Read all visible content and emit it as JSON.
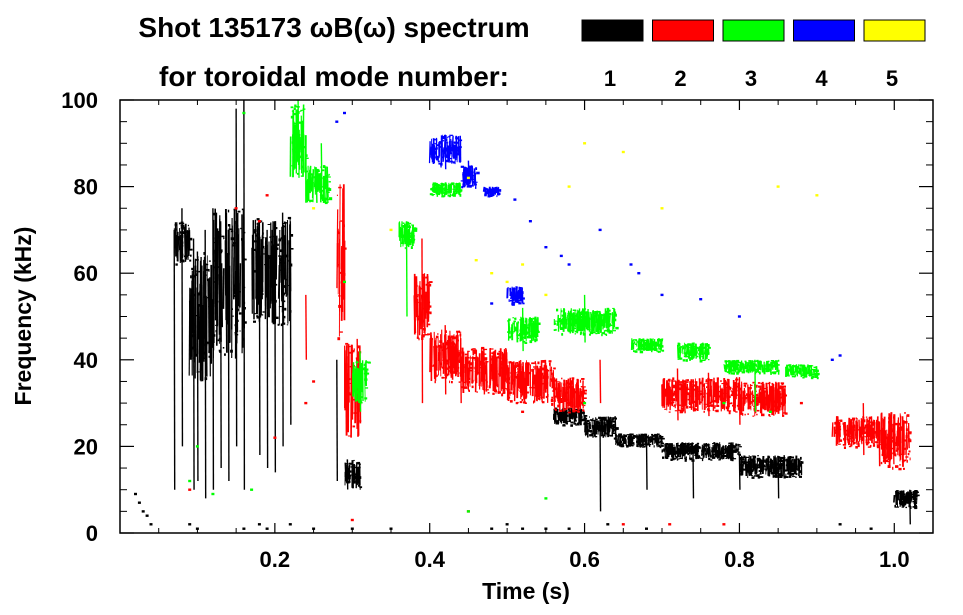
{
  "chart_data": {
    "type": "scatter",
    "title_line1": "Shot 135173 ωB(ω) spectrum",
    "title_line2": "for toroidal mode number:",
    "xlabel": "Time (s)",
    "ylabel": "Frequency (kHz)",
    "xlim": [
      0.0,
      1.05
    ],
    "ylim": [
      0,
      100
    ],
    "x_ticks": [
      0.2,
      0.4,
      0.6,
      0.8,
      1.0
    ],
    "x_tick_labels": [
      "0.2",
      "0.4",
      "0.6",
      "0.8",
      "1.0"
    ],
    "y_ticks": [
      0,
      20,
      40,
      60,
      80,
      100
    ],
    "y_tick_labels": [
      "0",
      "20",
      "40",
      "60",
      "80",
      "100"
    ],
    "legend": [
      {
        "label": "1",
        "color": "#000000"
      },
      {
        "label": "2",
        "color": "#ff0000"
      },
      {
        "label": "3",
        "color": "#00ff00"
      },
      {
        "label": "4",
        "color": "#0000ff"
      },
      {
        "label": "5",
        "color": "#ffff00"
      }
    ],
    "series": [
      {
        "name": "1",
        "color": "#000000",
        "bands": [
          [
            0.07,
            0.09,
            62,
            72
          ],
          [
            0.09,
            0.12,
            35,
            65
          ],
          [
            0.12,
            0.16,
            40,
            75
          ],
          [
            0.17,
            0.22,
            48,
            73
          ],
          [
            0.29,
            0.31,
            10,
            17
          ],
          [
            0.56,
            0.6,
            25,
            29
          ],
          [
            0.6,
            0.64,
            22,
            27
          ],
          [
            0.64,
            0.7,
            20,
            23
          ],
          [
            0.7,
            0.8,
            17,
            21
          ],
          [
            0.8,
            0.88,
            13,
            18
          ],
          [
            1.0,
            1.03,
            6,
            10
          ]
        ],
        "spikes": [
          [
            0.07,
            10,
            70
          ],
          [
            0.08,
            20,
            75
          ],
          [
            0.095,
            10,
            68
          ],
          [
            0.1,
            12,
            65
          ],
          [
            0.11,
            8,
            70
          ],
          [
            0.12,
            10,
            75
          ],
          [
            0.13,
            15,
            72
          ],
          [
            0.14,
            12,
            70
          ],
          [
            0.15,
            20,
            98
          ],
          [
            0.16,
            10,
            100
          ],
          [
            0.18,
            18,
            72
          ],
          [
            0.19,
            15,
            70
          ],
          [
            0.2,
            14,
            72
          ],
          [
            0.21,
            20,
            74
          ],
          [
            0.22,
            25,
            72
          ],
          [
            0.28,
            12,
            40
          ],
          [
            0.62,
            5,
            25
          ],
          [
            0.68,
            10,
            22
          ],
          [
            0.74,
            8,
            20
          ],
          [
            0.8,
            10,
            18
          ],
          [
            0.85,
            8,
            17
          ],
          [
            1.02,
            2,
            10
          ]
        ],
        "points": [
          [
            0.02,
            9
          ],
          [
            0.025,
            7
          ],
          [
            0.03,
            5
          ],
          [
            0.035,
            4
          ],
          [
            0.04,
            2
          ],
          [
            0.09,
            2
          ],
          [
            0.1,
            1
          ],
          [
            0.16,
            1
          ],
          [
            0.18,
            2
          ],
          [
            0.19,
            1
          ],
          [
            0.22,
            2
          ],
          [
            0.25,
            1
          ],
          [
            0.3,
            1
          ],
          [
            0.35,
            1
          ],
          [
            0.48,
            1
          ],
          [
            0.5,
            2
          ],
          [
            0.52,
            1
          ],
          [
            0.55,
            1
          ],
          [
            0.58,
            1
          ],
          [
            0.63,
            2
          ],
          [
            0.68,
            1
          ],
          [
            0.93,
            2
          ],
          [
            0.97,
            1
          ]
        ]
      },
      {
        "name": "2",
        "color": "#ff0000",
        "bands": [
          [
            0.28,
            0.29,
            45,
            82
          ],
          [
            0.29,
            0.31,
            22,
            45
          ],
          [
            0.38,
            0.4,
            45,
            60
          ],
          [
            0.4,
            0.44,
            35,
            47
          ],
          [
            0.44,
            0.5,
            32,
            43
          ],
          [
            0.5,
            0.56,
            30,
            40
          ],
          [
            0.56,
            0.6,
            28,
            36
          ],
          [
            0.7,
            0.8,
            28,
            36
          ],
          [
            0.8,
            0.86,
            27,
            35
          ],
          [
            0.92,
            0.98,
            20,
            27
          ],
          [
            0.98,
            1.02,
            15,
            28
          ]
        ],
        "spikes": [
          [
            0.39,
            30,
            68
          ],
          [
            0.42,
            32,
            48
          ],
          [
            0.44,
            30,
            45
          ],
          [
            0.47,
            32,
            42
          ],
          [
            0.62,
            30,
            40
          ],
          [
            0.72,
            26,
            38
          ],
          [
            0.76,
            27,
            37
          ],
          [
            0.8,
            25,
            36
          ],
          [
            0.96,
            18,
            30
          ],
          [
            0.24,
            40,
            55
          ]
        ],
        "points": [
          [
            0.15,
            75
          ],
          [
            0.18,
            72
          ],
          [
            0.19,
            78
          ],
          [
            0.24,
            30
          ],
          [
            0.25,
            35
          ],
          [
            0.09,
            10
          ],
          [
            0.2,
            22
          ],
          [
            0.3,
            3
          ],
          [
            0.45,
            5
          ],
          [
            0.52,
            28
          ],
          [
            0.65,
            2
          ],
          [
            0.71,
            2
          ],
          [
            0.78,
            2
          ],
          [
            0.88,
            30
          ]
        ]
      },
      {
        "name": "3",
        "color": "#00ff00",
        "bands": [
          [
            0.22,
            0.24,
            82,
            99
          ],
          [
            0.24,
            0.27,
            76,
            85
          ],
          [
            0.3,
            0.32,
            30,
            40
          ],
          [
            0.36,
            0.38,
            66,
            72
          ],
          [
            0.4,
            0.44,
            78,
            81
          ],
          [
            0.5,
            0.54,
            44,
            50
          ],
          [
            0.56,
            0.64,
            46,
            52
          ],
          [
            0.66,
            0.7,
            42,
            45
          ],
          [
            0.72,
            0.76,
            40,
            44
          ],
          [
            0.78,
            0.85,
            37,
            40
          ],
          [
            0.86,
            0.9,
            36,
            39
          ]
        ],
        "spikes": [
          [
            0.23,
            85,
            100
          ],
          [
            0.26,
            80,
            90
          ],
          [
            0.31,
            28,
            42
          ],
          [
            0.37,
            50,
            72
          ],
          [
            0.52,
            42,
            52
          ],
          [
            0.6,
            44,
            55
          ],
          [
            0.82,
            28,
            40
          ]
        ],
        "points": [
          [
            0.09,
            12
          ],
          [
            0.1,
            20
          ],
          [
            0.12,
            9
          ],
          [
            0.16,
            97
          ],
          [
            0.17,
            10
          ],
          [
            0.29,
            58
          ],
          [
            0.45,
            5
          ],
          [
            0.55,
            8
          ],
          [
            0.6,
            30
          ],
          [
            0.78,
            30
          ],
          [
            0.84,
            28
          ]
        ]
      },
      {
        "name": "4",
        "color": "#0000ff",
        "bands": [
          [
            0.4,
            0.44,
            85,
            92
          ],
          [
            0.44,
            0.46,
            80,
            85
          ],
          [
            0.47,
            0.49,
            78,
            80
          ],
          [
            0.5,
            0.52,
            53,
            57
          ]
        ],
        "spikes": [
          [
            0.42,
            84,
            92
          ],
          [
            0.45,
            80,
            86
          ]
        ],
        "points": [
          [
            0.29,
            97
          ],
          [
            0.28,
            95
          ],
          [
            0.51,
            77
          ],
          [
            0.53,
            72
          ],
          [
            0.55,
            66
          ],
          [
            0.57,
            64
          ],
          [
            0.58,
            62
          ],
          [
            0.62,
            70
          ],
          [
            0.66,
            62
          ],
          [
            0.67,
            60
          ],
          [
            0.7,
            55
          ],
          [
            0.75,
            54
          ],
          [
            0.8,
            50
          ],
          [
            0.92,
            40
          ],
          [
            0.93,
            41
          ],
          [
            0.48,
            53
          ]
        ]
      },
      {
        "name": "5",
        "color": "#ffff00",
        "bands": [],
        "spikes": [],
        "points": [
          [
            0.45,
            82
          ],
          [
            0.46,
            63
          ],
          [
            0.48,
            60
          ],
          [
            0.5,
            58
          ],
          [
            0.52,
            62
          ],
          [
            0.58,
            80
          ],
          [
            0.6,
            90
          ],
          [
            0.65,
            88
          ],
          [
            0.7,
            75
          ],
          [
            0.85,
            80
          ],
          [
            0.9,
            78
          ],
          [
            0.25,
            75
          ],
          [
            0.35,
            70
          ],
          [
            0.55,
            55
          ]
        ]
      }
    ]
  }
}
